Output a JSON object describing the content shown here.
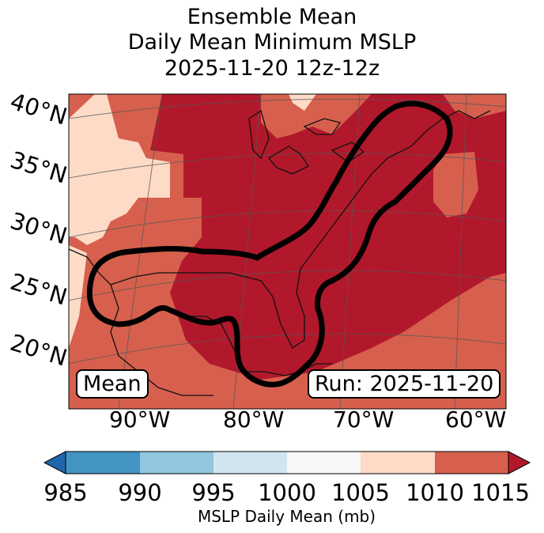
{
  "title": {
    "line1": "Ensemble Mean",
    "line2": "Daily Mean Minimum MSLP",
    "line3": "2025-11-20 12z-12z"
  },
  "map": {
    "lat_labels": [
      "40°N",
      "35°N",
      "30°N",
      "25°N",
      "20°N"
    ],
    "lon_labels": [
      "90°W",
      "80°W",
      "70°W",
      "60°W"
    ],
    "mean_box": "Mean",
    "run_box": "Run: 2025-11-20"
  },
  "colorbar": {
    "ticks": [
      "985",
      "990",
      "995",
      "1000",
      "1005",
      "1010",
      "1015"
    ],
    "label": "MSLP Daily Mean (mb)",
    "colors": [
      "#2166ac",
      "#4393c3",
      "#92c5de",
      "#d1e5f0",
      "#f7f7f7",
      "#fddbc7",
      "#d6604d",
      "#b2182b"
    ]
  },
  "colors": {
    "band_1005_1010": "#fddbc7",
    "band_1010_1015": "#d6604d",
    "band_above_1015": "#b2182b",
    "contour": "#000000"
  }
}
